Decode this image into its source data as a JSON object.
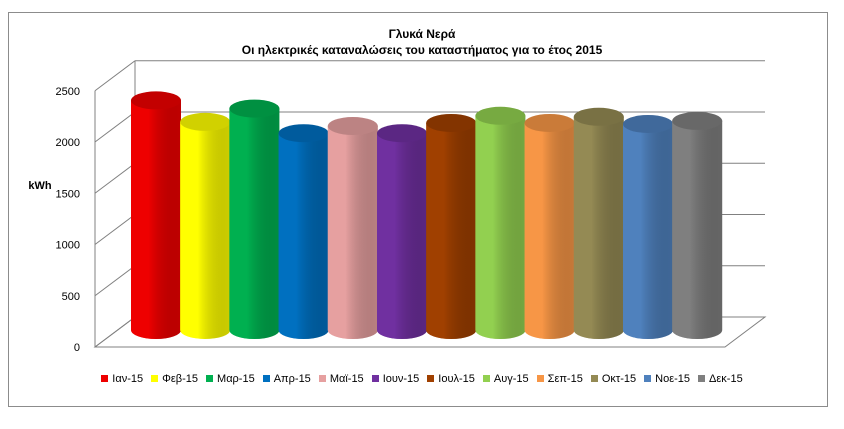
{
  "chart_data": {
    "type": "bar",
    "style": "3d-cylinder",
    "title": "Γλυκά Νερά",
    "subtitle": "Οι ηλεκτρικές καταναλώσεις του καταστήματος για το έτος 2015",
    "ylabel": "kWh",
    "xlabel": "",
    "ylim": [
      0,
      2500
    ],
    "yticks": [
      0,
      500,
      1000,
      1500,
      2000,
      2500
    ],
    "grid": true,
    "legend_position": "bottom",
    "categories": [
      "Ιαν-15",
      "Φεβ-15",
      "Μαρ-15",
      "Απρ-15",
      "Μαϊ-15",
      "Ιουν-15",
      "Ιουλ-15",
      "Αυγ-15",
      "Σεπ-15",
      "Οκτ-15",
      "Νοε-15",
      "Δεκ-15"
    ],
    "values": [
      2240,
      2030,
      2160,
      1920,
      1990,
      1920,
      2020,
      2090,
      2020,
      2080,
      2010,
      2040
    ],
    "colors": [
      "#ee0000",
      "#ffff00",
      "#00b050",
      "#0070c0",
      "#e6a0a0",
      "#7030a0",
      "#a04000",
      "#92d050",
      "#f79646",
      "#948a54",
      "#4f81bd",
      "#7f7f7f"
    ]
  }
}
